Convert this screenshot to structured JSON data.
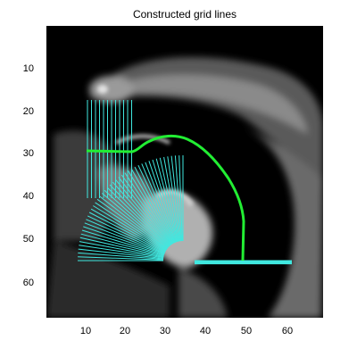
{
  "figure": {
    "title": "Constructed grid lines"
  },
  "axes": {
    "x_ticks": [
      "10",
      "20",
      "30",
      "40",
      "50",
      "60"
    ],
    "y_ticks": [
      "10",
      "20",
      "30",
      "40",
      "50",
      "60"
    ]
  },
  "colors": {
    "background": "#000000",
    "grid_lines": "#40e8e0",
    "center_line": "#22ee33",
    "tissue": "#9a9a9a"
  }
}
